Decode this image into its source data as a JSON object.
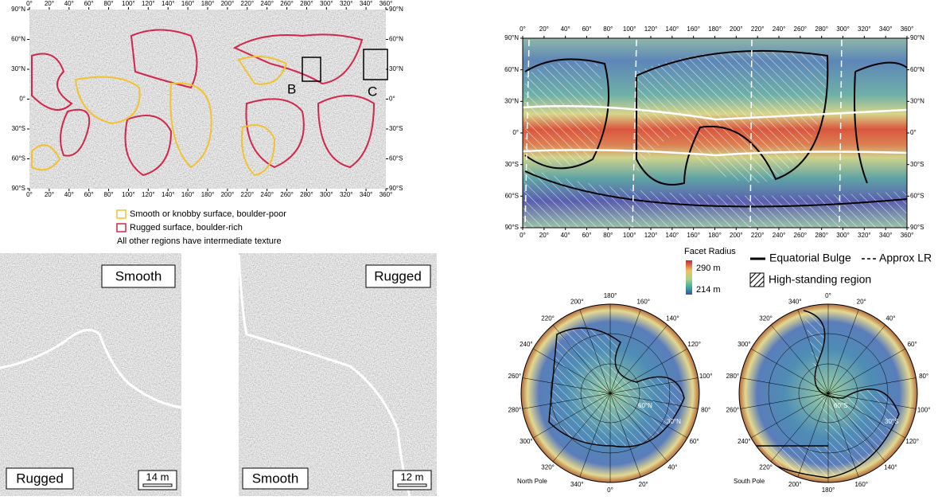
{
  "texture_map": {
    "lon_ticks": [
      "0°",
      "20°",
      "40°",
      "60°",
      "80°",
      "100°",
      "120°",
      "140°",
      "160°",
      "180°",
      "200°",
      "220°",
      "240°",
      "260°",
      "280°",
      "300°",
      "320°",
      "340°",
      "360°"
    ],
    "lat_ticks": [
      "90°N",
      "60°N",
      "30°N",
      "0°",
      "30°S",
      "60°S",
      "90°S"
    ],
    "region_labels": [
      "B",
      "C"
    ]
  },
  "texture_legend": {
    "items": [
      {
        "label": "Smooth or knobby surface, boulder-poor",
        "color": "#f2c230"
      },
      {
        "label": "Rugged surface, boulder-rich",
        "color": "#d3264a"
      }
    ],
    "note": "All other regions have intermediate texture"
  },
  "panel_b": {
    "top_label": "Smooth",
    "bottom_label": "Rugged",
    "scale_bar": "14 m"
  },
  "panel_c": {
    "top_label": "Rugged",
    "bottom_label": "Smooth",
    "scale_bar": "12 m"
  },
  "radius_map": {
    "lon_ticks": [
      "0°",
      "20°",
      "40°",
      "60°",
      "80°",
      "100°",
      "120°",
      "140°",
      "160°",
      "180°",
      "200°",
      "220°",
      "240°",
      "260°",
      "280°",
      "300°",
      "320°",
      "340°",
      "360°"
    ],
    "lat_ticks": [
      "90°N",
      "60°N",
      "30°N",
      "0°",
      "30°S",
      "60°S",
      "90°S"
    ]
  },
  "colorbar": {
    "title": "Facet Radius",
    "max_label": "290 m",
    "min_label": "214 m"
  },
  "line_legend": {
    "bulge": "Equatorial Bulge",
    "lr": "Approx LR",
    "high": "High-standing region"
  },
  "north_pole": {
    "title": "North Pole",
    "lon_labels": [
      "0°",
      "20°",
      "40°",
      "60°",
      "80°",
      "100°",
      "120°",
      "140°",
      "160°",
      "180°",
      "200°",
      "220°",
      "240°",
      "260°",
      "280°",
      "300°",
      "320°",
      "340°"
    ],
    "lat_labels": [
      "60°N",
      "30°N"
    ]
  },
  "south_pole": {
    "title": "South Pole",
    "lon_labels": [
      "0°",
      "20°",
      "40°",
      "60°",
      "80°",
      "100°",
      "120°",
      "140°",
      "160°",
      "180°",
      "200°",
      "220°",
      "240°",
      "260°",
      "280°",
      "300°",
      "320°",
      "340°"
    ],
    "lat_labels": [
      "60°S",
      "30°S"
    ]
  }
}
